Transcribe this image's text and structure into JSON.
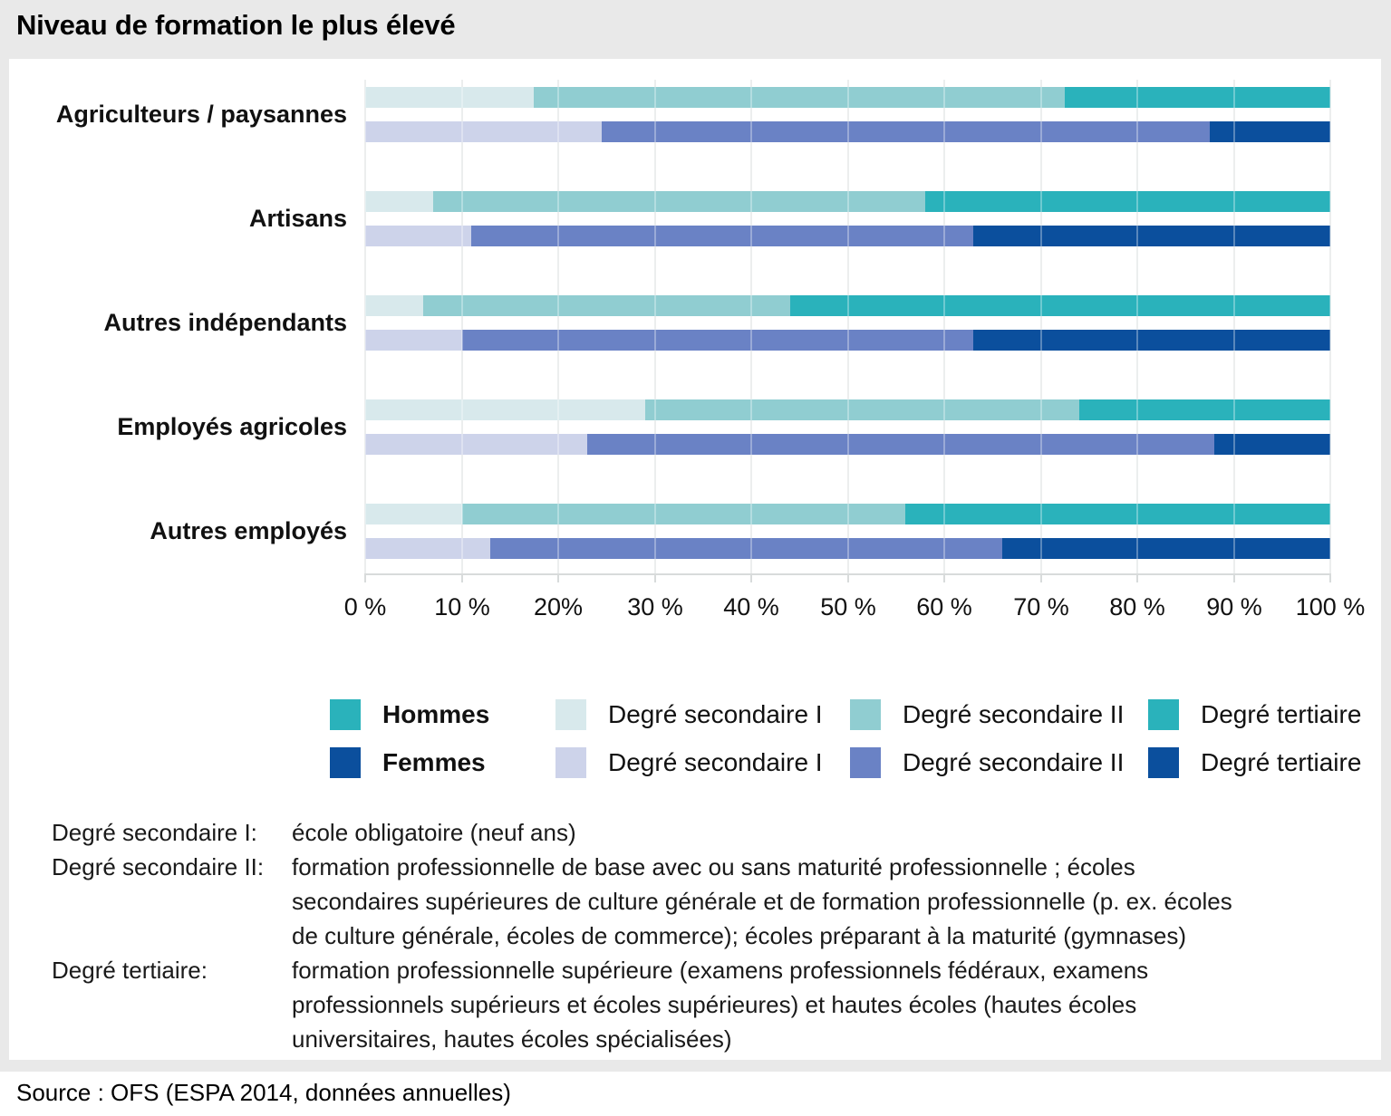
{
  "title": "Niveau de formation le plus élevé",
  "source_line": "Source : OFS (ESPA 2014, données annuelles)",
  "colors": {
    "hommes": {
      "sec1": "#d8e9ec",
      "sec2": "#90cdd1",
      "tert": "#2ab2bb"
    },
    "femmes": {
      "sec1": "#cdd3ea",
      "sec2": "#6a82c5",
      "tert": "#0b4f9d"
    }
  },
  "chart_data": {
    "type": "bar",
    "orientation": "horizontal",
    "stacked": true,
    "unit": "%",
    "xlim": [
      0,
      100
    ],
    "grid": true,
    "legend_position": "bottom",
    "x_ticks": [
      "0 %",
      "10 %",
      "20%",
      "30 %",
      "40 %",
      "50 %",
      "60 %",
      "70 %",
      "80 %",
      "90 %",
      "100 %"
    ],
    "segment_order": [
      "sec1",
      "sec2",
      "tert"
    ],
    "segment_labels": {
      "sec1": "Degré secondaire I",
      "sec2": "Degré secondaire II",
      "tert": "Degré tertiaire"
    },
    "series_pair": [
      "hommes",
      "femmes"
    ],
    "groups": [
      {
        "key": "agriculteurs-paysannes",
        "category": "Agriculteurs / paysannes",
        "hommes": {
          "sec1": 17.5,
          "sec2": 55,
          "tert": 27.5
        },
        "femmes": {
          "sec1": 24.5,
          "sec2": 63,
          "tert": 12.5
        }
      },
      {
        "key": "artisans",
        "category": "Artisans",
        "hommes": {
          "sec1": 7,
          "sec2": 51,
          "tert": 42
        },
        "femmes": {
          "sec1": 11,
          "sec2": 52,
          "tert": 37
        }
      },
      {
        "key": "autres-independants",
        "category": "Autres indépendants",
        "hommes": {
          "sec1": 6,
          "sec2": 38,
          "tert": 56
        },
        "femmes": {
          "sec1": 10,
          "sec2": 53,
          "tert": 37
        }
      },
      {
        "key": "employes-agricoles",
        "category": "Employés agricoles",
        "hommes": {
          "sec1": 29,
          "sec2": 45,
          "tert": 26
        },
        "femmes": {
          "sec1": 23,
          "sec2": 65,
          "tert": 12
        }
      },
      {
        "key": "autres-employes",
        "category": "Autres employés",
        "hommes": {
          "sec1": 10,
          "sec2": 46,
          "tert": 44
        },
        "femmes": {
          "sec1": 13,
          "sec2": 53,
          "tert": 34
        }
      }
    ]
  },
  "legend": {
    "rows": [
      {
        "key": "hommes",
        "items": [
          {
            "label": "Hommes",
            "bold": true,
            "swatch": "tert"
          },
          {
            "label": "Degré secondaire I",
            "bold": false,
            "swatch": "sec1"
          },
          {
            "label": "Degré secondaire II",
            "bold": false,
            "swatch": "sec2"
          },
          {
            "label": "Degré tertiaire",
            "bold": false,
            "swatch": "tert"
          }
        ]
      },
      {
        "key": "femmes",
        "items": [
          {
            "label": "Femmes",
            "bold": true,
            "swatch": "tert"
          },
          {
            "label": "Degré secondaire I",
            "bold": false,
            "swatch": "sec1"
          },
          {
            "label": "Degré secondaire II",
            "bold": false,
            "swatch": "sec2"
          },
          {
            "label": "Degré tertiaire",
            "bold": false,
            "swatch": "tert"
          }
        ]
      }
    ]
  },
  "footnotes": [
    {
      "label": "Degré secondaire I:",
      "lines": [
        "école obligatoire (neuf ans)"
      ]
    },
    {
      "label": "Degré secondaire II:",
      "lines": [
        "formation professionnelle de base avec ou sans maturité professionnelle ; écoles",
        "secondaires supérieures de culture générale et de formation professionnelle (p. ex. écoles",
        "de culture générale, écoles de commerce); écoles préparant à la maturité (gymnases)"
      ]
    },
    {
      "label": "Degré tertiaire:",
      "lines": [
        "formation professionnelle supérieure (examens professionnels fédéraux, examens",
        "professionnels supérieurs et écoles supérieures) et hautes écoles (hautes écoles",
        "universitaires, hautes écoles spécialisées)"
      ]
    }
  ]
}
